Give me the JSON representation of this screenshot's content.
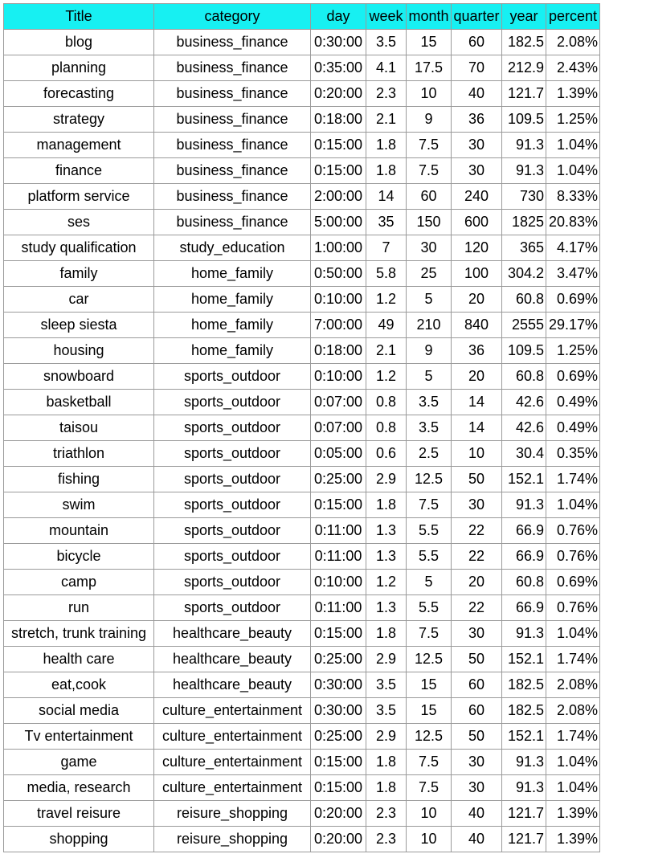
{
  "table": {
    "headers": [
      "Title",
      "category",
      "day",
      "week",
      "month",
      "quarter",
      "year",
      "percent"
    ],
    "rows": [
      [
        "blog",
        "business_finance",
        "0:30:00",
        "3.5",
        "15",
        "60",
        "182.5",
        "2.08%"
      ],
      [
        "planning",
        "business_finance",
        "0:35:00",
        "4.1",
        "17.5",
        "70",
        "212.9",
        "2.43%"
      ],
      [
        "forecasting",
        "business_finance",
        "0:20:00",
        "2.3",
        "10",
        "40",
        "121.7",
        "1.39%"
      ],
      [
        "strategy",
        "business_finance",
        "0:18:00",
        "2.1",
        "9",
        "36",
        "109.5",
        "1.25%"
      ],
      [
        "management",
        "business_finance",
        "0:15:00",
        "1.8",
        "7.5",
        "30",
        "91.3",
        "1.04%"
      ],
      [
        "finance",
        "business_finance",
        "0:15:00",
        "1.8",
        "7.5",
        "30",
        "91.3",
        "1.04%"
      ],
      [
        "platform service",
        "business_finance",
        "2:00:00",
        "14",
        "60",
        "240",
        "730",
        "8.33%"
      ],
      [
        "ses",
        "business_finance",
        "5:00:00",
        "35",
        "150",
        "600",
        "1825",
        "20.83%"
      ],
      [
        "study qualification",
        "study_education",
        "1:00:00",
        "7",
        "30",
        "120",
        "365",
        "4.17%"
      ],
      [
        "family",
        "home_family",
        "0:50:00",
        "5.8",
        "25",
        "100",
        "304.2",
        "3.47%"
      ],
      [
        "car",
        "home_family",
        "0:10:00",
        "1.2",
        "5",
        "20",
        "60.8",
        "0.69%"
      ],
      [
        "sleep siesta",
        "home_family",
        "7:00:00",
        "49",
        "210",
        "840",
        "2555",
        "29.17%"
      ],
      [
        "housing",
        "home_family",
        "0:18:00",
        "2.1",
        "9",
        "36",
        "109.5",
        "1.25%"
      ],
      [
        "snowboard",
        "sports_outdoor",
        "0:10:00",
        "1.2",
        "5",
        "20",
        "60.8",
        "0.69%"
      ],
      [
        "basketball",
        "sports_outdoor",
        "0:07:00",
        "0.8",
        "3.5",
        "14",
        "42.6",
        "0.49%"
      ],
      [
        "taisou",
        "sports_outdoor",
        "0:07:00",
        "0.8",
        "3.5",
        "14",
        "42.6",
        "0.49%"
      ],
      [
        "triathlon",
        "sports_outdoor",
        "0:05:00",
        "0.6",
        "2.5",
        "10",
        "30.4",
        "0.35%"
      ],
      [
        "fishing",
        "sports_outdoor",
        "0:25:00",
        "2.9",
        "12.5",
        "50",
        "152.1",
        "1.74%"
      ],
      [
        "swim",
        "sports_outdoor",
        "0:15:00",
        "1.8",
        "7.5",
        "30",
        "91.3",
        "1.04%"
      ],
      [
        "mountain",
        "sports_outdoor",
        "0:11:00",
        "1.3",
        "5.5",
        "22",
        "66.9",
        "0.76%"
      ],
      [
        "bicycle",
        "sports_outdoor",
        "0:11:00",
        "1.3",
        "5.5",
        "22",
        "66.9",
        "0.76%"
      ],
      [
        "camp",
        "sports_outdoor",
        "0:10:00",
        "1.2",
        "5",
        "20",
        "60.8",
        "0.69%"
      ],
      [
        "run",
        "sports_outdoor",
        "0:11:00",
        "1.3",
        "5.5",
        "22",
        "66.9",
        "0.76%"
      ],
      [
        "stretch, trunk training",
        "healthcare_beauty",
        "0:15:00",
        "1.8",
        "7.5",
        "30",
        "91.3",
        "1.04%"
      ],
      [
        "health care",
        "healthcare_beauty",
        "0:25:00",
        "2.9",
        "12.5",
        "50",
        "152.1",
        "1.74%"
      ],
      [
        "eat,cook",
        "healthcare_beauty",
        "0:30:00",
        "3.5",
        "15",
        "60",
        "182.5",
        "2.08%"
      ],
      [
        "social media",
        "culture_entertainment",
        "0:30:00",
        "3.5",
        "15",
        "60",
        "182.5",
        "2.08%"
      ],
      [
        "Tv entertainment",
        "culture_entertainment",
        "0:25:00",
        "2.9",
        "12.5",
        "50",
        "152.1",
        "1.74%"
      ],
      [
        "game",
        "culture_entertainment",
        "0:15:00",
        "1.8",
        "7.5",
        "30",
        "91.3",
        "1.04%"
      ],
      [
        "media, research",
        "culture_entertainment",
        "0:15:00",
        "1.8",
        "7.5",
        "30",
        "91.3",
        "1.04%"
      ],
      [
        "travel reisure",
        "reisure_shopping",
        "0:20:00",
        "2.3",
        "10",
        "40",
        "121.7",
        "1.39%"
      ],
      [
        "shopping",
        "reisure_shopping",
        "0:20:00",
        "2.3",
        "10",
        "40",
        "121.7",
        "1.39%"
      ]
    ]
  },
  "colors": {
    "header_background": "#17f0f2",
    "grid_line": "#9a9a9a"
  }
}
